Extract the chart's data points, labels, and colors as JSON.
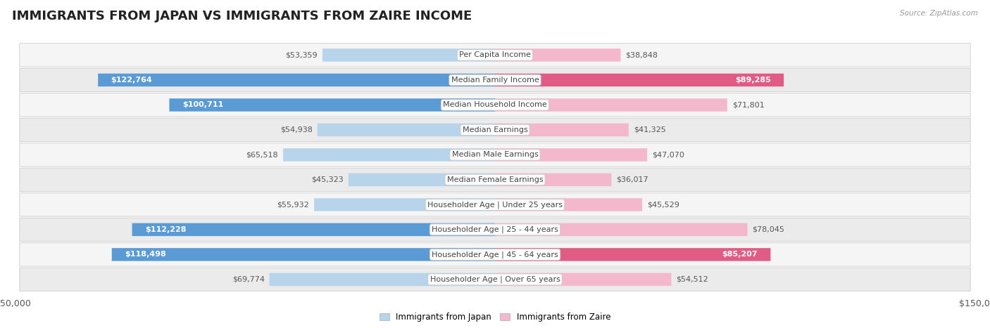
{
  "title": "IMMIGRANTS FROM JAPAN VS IMMIGRANTS FROM ZAIRE INCOME",
  "source": "Source: ZipAtlas.com",
  "categories": [
    "Per Capita Income",
    "Median Family Income",
    "Median Household Income",
    "Median Earnings",
    "Median Male Earnings",
    "Median Female Earnings",
    "Householder Age | Under 25 years",
    "Householder Age | 25 - 44 years",
    "Householder Age | 45 - 64 years",
    "Householder Age | Over 65 years"
  ],
  "japan_values": [
    53359,
    122764,
    100711,
    54938,
    65518,
    45323,
    55932,
    112228,
    118498,
    69774
  ],
  "zaire_values": [
    38848,
    89285,
    71801,
    41325,
    47070,
    36017,
    45529,
    78045,
    85207,
    54512
  ],
  "japan_labels": [
    "$53,359",
    "$122,764",
    "$100,711",
    "$54,938",
    "$65,518",
    "$45,323",
    "$55,932",
    "$112,228",
    "$118,498",
    "$69,774"
  ],
  "zaire_labels": [
    "$38,848",
    "$89,285",
    "$71,801",
    "$41,325",
    "$47,070",
    "$36,017",
    "$45,529",
    "$78,045",
    "$85,207",
    "$54,512"
  ],
  "japan_color_light": "#b8d4ea",
  "japan_color_dark": "#5b9bd5",
  "zaire_color_light": "#f4b8cc",
  "zaire_color_dark": "#e05c85",
  "row_bg_even": "#f5f5f5",
  "row_bg_odd": "#ebebeb",
  "max_value": 150000,
  "legend_japan": "Immigrants from Japan",
  "legend_zaire": "Immigrants from Zaire",
  "title_fontsize": 13,
  "label_fontsize": 8,
  "category_fontsize": 8,
  "axis_label_fontsize": 9,
  "japan_threshold": 80000,
  "zaire_threshold": 80000
}
